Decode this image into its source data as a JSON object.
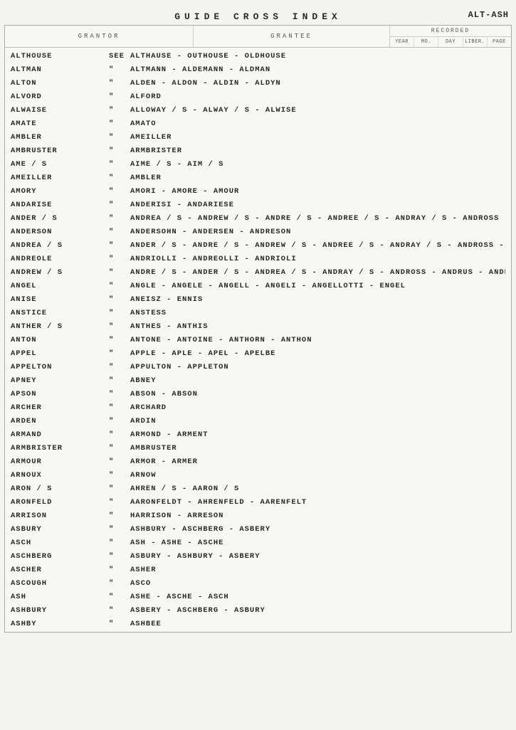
{
  "title": "GUIDE CROSS INDEX",
  "range": "ALT-ASH",
  "headers": {
    "grantor": "GRANTOR",
    "grantee": "GRANTEE",
    "recorded": "RECORDED",
    "sub": [
      "YEAR",
      "MO.",
      "DAY",
      "LIBER.",
      "PAGE"
    ]
  },
  "rows": [
    {
      "grantor": "ALTHOUSE",
      "mark": "SEE",
      "variants": "ALTHAUSE - OUTHOUSE - OLDHOUSE"
    },
    {
      "grantor": "ALTMAN",
      "mark": "\"",
      "variants": "ALTMANN - ALDEMANN - ALDMAN"
    },
    {
      "grantor": "ALTON",
      "mark": "\"",
      "variants": "ALDEN - ALDON - ALDIN - ALDYN"
    },
    {
      "grantor": "ALVORD",
      "mark": "\"",
      "variants": "ALFORD"
    },
    {
      "grantor": "ALWAISE",
      "mark": "\"",
      "variants": "ALLOWAY / S - ALWAY / S - ALWISE"
    },
    {
      "grantor": "AMATE",
      "mark": "\"",
      "variants": "AMATO"
    },
    {
      "grantor": "AMBLER",
      "mark": "\"",
      "variants": "AMEILLER"
    },
    {
      "grantor": "AMBRUSTER",
      "mark": "\"",
      "variants": "ARMBRISTER"
    },
    {
      "grantor": "AME / S",
      "mark": "\"",
      "variants": "AIME / S - AIM / S"
    },
    {
      "grantor": "AMEILLER",
      "mark": "\"",
      "variants": "AMBLER"
    },
    {
      "grantor": "AMORY",
      "mark": "\"",
      "variants": "AMORI - AMORE - AMOUR"
    },
    {
      "grantor": "ANDARISE",
      "mark": "\"",
      "variants": "ANDERISI - ANDARIESE"
    },
    {
      "grantor": "ANDER / S",
      "mark": "\"",
      "variants": "ANDREA / S - ANDREW / S - ANDRE / S - ANDREE / S - ANDRAY / S - ANDROSS - ANDRUS"
    },
    {
      "grantor": "ANDERSON",
      "mark": "\"",
      "variants": "ANDERSOHN - ANDERSEN - ANDRESON"
    },
    {
      "grantor": "ANDREA / S",
      "mark": "\"",
      "variants": "ANDER / S - ANDRE / S - ANDREW / S - ANDREE / S - ANDRAY / S - ANDROSS - ANDRUS"
    },
    {
      "grantor": "ANDREOLE",
      "mark": "\"",
      "variants": "ANDRIOLLI - ANDREOLLI - ANDRIOLI"
    },
    {
      "grantor": "ANDREW / S",
      "mark": "\"",
      "variants": "ANDRE / S - ANDER / S - ANDREA / S - ANDRAY / S - ANDROSS - ANDRUS - ANDREA / S"
    },
    {
      "grantor": "ANGEL",
      "mark": "\"",
      "variants": "ANGLE - ANGELE - ANGELL - ANGELI - ANGELLOTTI - ENGEL"
    },
    {
      "grantor": "ANISE",
      "mark": "\"",
      "variants": "ANEISZ - ENNIS"
    },
    {
      "grantor": "ANSTICE",
      "mark": "\"",
      "variants": "ANSTESS"
    },
    {
      "grantor": "ANTHER / S",
      "mark": "\"",
      "variants": "ANTHES - ANTHIS"
    },
    {
      "grantor": "ANTON",
      "mark": "\"",
      "variants": "ANTONE - ANTOINE - ANTHORN - ANTHON"
    },
    {
      "grantor": "APPEL",
      "mark": "\"",
      "variants": "APPLE - APLE - APEL - APELBE"
    },
    {
      "grantor": "APPELTON",
      "mark": "\"",
      "variants": "APPULTON - APPLETON"
    },
    {
      "grantor": "APNEY",
      "mark": "\"",
      "variants": "ABNEY"
    },
    {
      "grantor": "APSON",
      "mark": "\"",
      "variants": "ABSON - ABSON"
    },
    {
      "grantor": "ARCHER",
      "mark": "\"",
      "variants": "ARCHARD"
    },
    {
      "grantor": "ARDEN",
      "mark": "\"",
      "variants": "ARDIN"
    },
    {
      "grantor": "ARMAND",
      "mark": "\"",
      "variants": "ARMOND - ARMENT"
    },
    {
      "grantor": "ARMBRISTER",
      "mark": "\"",
      "variants": "AMBRUSTER"
    },
    {
      "grantor": "ARMOUR",
      "mark": "\"",
      "variants": "ARMOR - ARMER"
    },
    {
      "grantor": "ARNOUX",
      "mark": "\"",
      "variants": "ARNOW"
    },
    {
      "grantor": "ARON / S",
      "mark": "\"",
      "variants": "AHREN / S - AARON / S"
    },
    {
      "grantor": "ARONFELD",
      "mark": "\"",
      "variants": "AARONFELDT - AHRENFELD - AARENFELT"
    },
    {
      "grantor": "ARRISON",
      "mark": "\"",
      "variants": "HARRISON - ARRESON"
    },
    {
      "grantor": "ASBURY",
      "mark": "\"",
      "variants": "ASHBURY - ASCHBERG - ASBERY"
    },
    {
      "grantor": "ASCH",
      "mark": "\"",
      "variants": "ASH - ASHE - ASCHE"
    },
    {
      "grantor": "ASCHBERG",
      "mark": "\"",
      "variants": "ASBURY - ASHBURY - ASBERY"
    },
    {
      "grantor": "ASCHER",
      "mark": "\"",
      "variants": "ASHER"
    },
    {
      "grantor": "ASCOUGH",
      "mark": "\"",
      "variants": "ASCO"
    },
    {
      "grantor": "ASH",
      "mark": "\"",
      "variants": "ASHE - ASCHE - ASCH"
    },
    {
      "grantor": "ASHBURY",
      "mark": "\"",
      "variants": "ASBERY - ASCHBERG - ASBURY"
    },
    {
      "grantor": "ASHBY",
      "mark": "\"",
      "variants": "ASHBEE"
    }
  ]
}
